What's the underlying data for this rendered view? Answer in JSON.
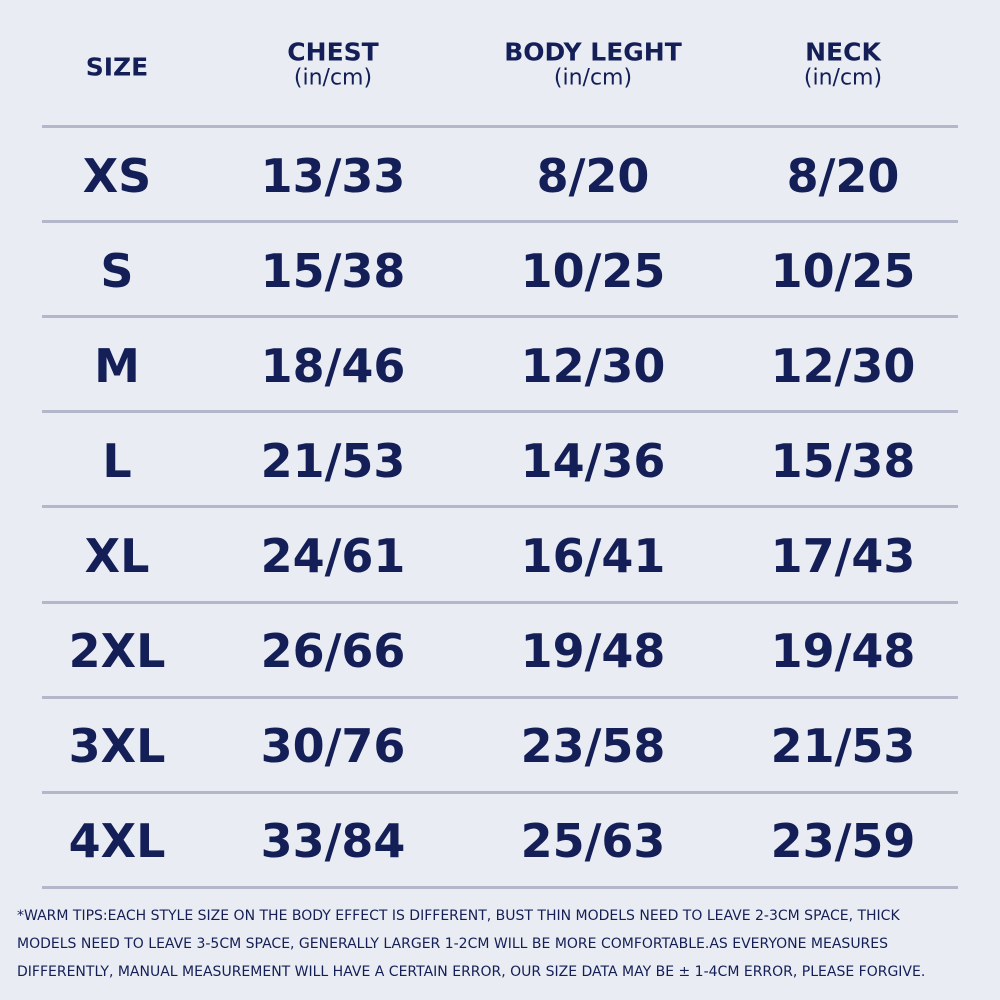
{
  "table": {
    "header": [
      {
        "title": "SIZE"
      },
      {
        "title": "CHEST",
        "unit": "(in/cm)"
      },
      {
        "title": "BODY LEGHT",
        "unit": "(in/cm)"
      },
      {
        "title": "NECK",
        "unit": "(in/cm)"
      }
    ],
    "rows": [
      [
        "XS",
        "13/33",
        "8/20",
        "8/20"
      ],
      [
        "S",
        "15/38",
        "10/25",
        "10/25"
      ],
      [
        "M",
        "18/46",
        "12/30",
        "12/30"
      ],
      [
        "L",
        "21/53",
        "14/36",
        "15/38"
      ],
      [
        "XL",
        "24/61",
        "16/41",
        "17/43"
      ],
      [
        "2XL",
        "26/66",
        "19/48",
        "19/48"
      ],
      [
        "3XL",
        "30/76",
        "23/58",
        "21/53"
      ],
      [
        "4XL",
        "33/84",
        "25/63",
        "23/59"
      ]
    ]
  },
  "note": [
    "*WARM TIPS:EACH STYLE SIZE ON THE BODY EFFECT IS DIFFERENT, BUST THIN MODELS NEED TO LEAVE 2-3CM SPACE, THICK",
    "MODELS NEED TO LEAVE 3-5CM SPACE, GENERALLY LARGER 1-2CM WILL BE MORE COMFORTABLE.AS EVERYONE MEASURES",
    "DIFFERENTLY, MANUAL MEASUREMENT WILL HAVE A CERTAIN ERROR, OUR SIZE DATA MAY BE ± 1-4CM ERROR, PLEASE FORGIVE."
  ]
}
